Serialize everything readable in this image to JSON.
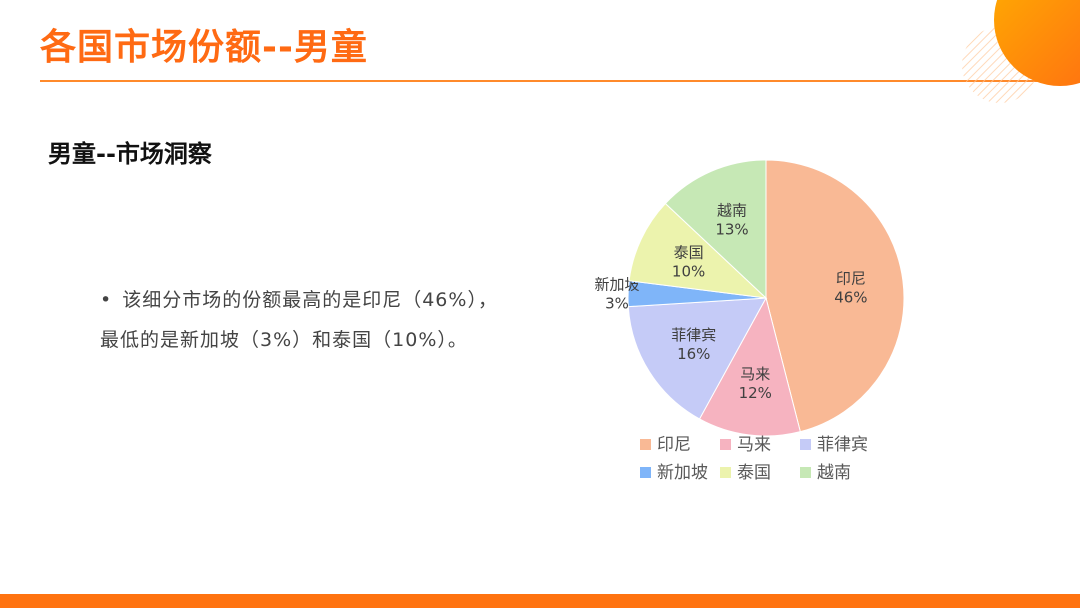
{
  "slide": {
    "title": "各国市场份额--男童",
    "subtitle": "男童--市场洞察",
    "bullet_line1": "该细分市场的份额最高的是印尼（46%），",
    "bullet_line2": "最低的是新加坡（3%）和泰国（10%）。"
  },
  "colors": {
    "accent": "#ff6a13",
    "bar": "#ff7310"
  },
  "chart_data": {
    "type": "pie",
    "slices": [
      {
        "label": "印尼",
        "value": 46,
        "pct_label": "46%",
        "color": "#f9b995"
      },
      {
        "label": "马来",
        "value": 12,
        "pct_label": "12%",
        "color": "#f6b3c0"
      },
      {
        "label": "菲律宾",
        "value": 16,
        "pct_label": "16%",
        "color": "#c5cbf7"
      },
      {
        "label": "新加坡",
        "value": 3,
        "pct_label": "3%",
        "color": "#7fb5f9"
      },
      {
        "label": "泰国",
        "value": 10,
        "pct_label": "10%",
        "color": "#ecf3ad"
      },
      {
        "label": "越南",
        "value": 13,
        "pct_label": "13%",
        "color": "#c6e8b5"
      }
    ],
    "legend_placement": "bottom"
  }
}
